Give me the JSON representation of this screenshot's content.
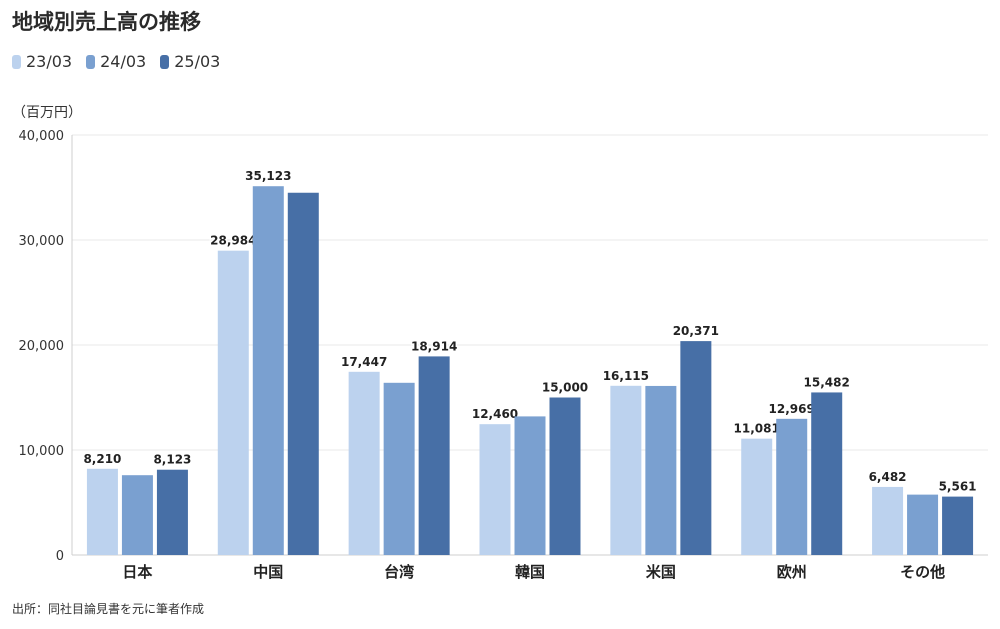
{
  "title": "地域別売上高の推移",
  "unit_label": "（百万円）",
  "source_note": "出所：同社目論見書を元に筆者作成",
  "colors": {
    "s1": "#bcd2ee",
    "s2": "#7aa0d0",
    "s3": "#476fa6",
    "grid": "#e8e8e8",
    "axis": "#cfcfcf"
  },
  "chart_data": {
    "type": "bar",
    "title": "地域別売上高の推移",
    "ylabel": "（百万円）",
    "ylim": [
      0,
      40000
    ],
    "yticks": [
      "0",
      "10,000",
      "20,000",
      "30,000",
      "40,000"
    ],
    "ytick_values": [
      0,
      10000,
      20000,
      30000,
      40000
    ],
    "grid": true,
    "legend_position": "top-left",
    "categories": [
      "日本",
      "中国",
      "台湾",
      "韓国",
      "米国",
      "欧州",
      "その他"
    ],
    "series": [
      {
        "name": "23/03",
        "values": [
          8210,
          28984,
          17447,
          12460,
          16115,
          11081,
          6482
        ]
      },
      {
        "name": "24/03",
        "values": [
          7600,
          35123,
          16400,
          13200,
          16100,
          12969,
          5750
        ]
      },
      {
        "name": "25/03",
        "values": [
          8123,
          34500,
          18914,
          15000,
          20371,
          15482,
          5561
        ]
      }
    ],
    "data_labels": [
      [
        "8,210",
        "28,984",
        "17,447",
        "12,460",
        "16,115",
        "11,081",
        "6,482"
      ],
      [
        "",
        "35,123",
        "",
        "",
        "",
        "12,969",
        ""
      ],
      [
        "8,123",
        "",
        "18,914",
        "15,000",
        "20,371",
        "15,482",
        "5,561"
      ]
    ]
  }
}
